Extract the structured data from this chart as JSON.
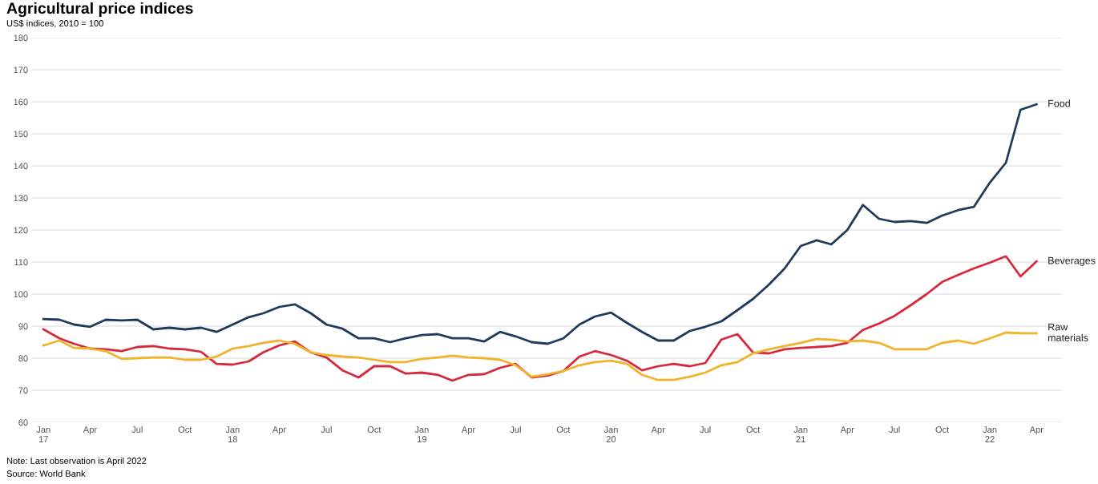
{
  "chart_data": {
    "type": "line",
    "title": "Agricultural price indices",
    "subtitle": "US$ indices, 2010 = 100",
    "x": [
      "2017-01",
      "2017-02",
      "2017-03",
      "2017-04",
      "2017-05",
      "2017-06",
      "2017-07",
      "2017-08",
      "2017-09",
      "2017-10",
      "2017-11",
      "2017-12",
      "2018-01",
      "2018-02",
      "2018-03",
      "2018-04",
      "2018-05",
      "2018-06",
      "2018-07",
      "2018-08",
      "2018-09",
      "2018-10",
      "2018-11",
      "2018-12",
      "2019-01",
      "2019-02",
      "2019-03",
      "2019-04",
      "2019-05",
      "2019-06",
      "2019-07",
      "2019-08",
      "2019-09",
      "2019-10",
      "2019-11",
      "2019-12",
      "2020-01",
      "2020-02",
      "2020-03",
      "2020-04",
      "2020-05",
      "2020-06",
      "2020-07",
      "2020-08",
      "2020-09",
      "2020-10",
      "2020-11",
      "2020-12",
      "2021-01",
      "2021-02",
      "2021-03",
      "2021-04",
      "2021-05",
      "2021-06",
      "2021-07",
      "2021-08",
      "2021-09",
      "2021-10",
      "2021-11",
      "2021-12",
      "2022-01",
      "2022-02",
      "2022-03",
      "2022-04"
    ],
    "series": [
      {
        "name": "Food",
        "color": "#1f3a5a",
        "values": [
          92.2,
          92,
          90.5,
          89.8,
          92,
          91.8,
          92,
          89,
          89.5,
          89,
          89.5,
          88.2,
          90.5,
          92.8,
          94,
          96,
          96.8,
          94,
          90.5,
          89.2,
          86.2,
          86.2,
          85,
          86.2,
          87.2,
          87.5,
          86.2,
          86.2,
          85.2,
          88.2,
          86.8,
          85,
          84.5,
          86.2,
          90.5,
          93,
          94.2,
          91,
          88.2,
          85.5,
          85.5,
          88.5,
          89.8,
          91.5,
          95,
          98.5,
          103,
          108,
          115,
          116.8,
          115.5,
          120,
          127.8,
          123.5,
          122.5,
          122.8,
          122.2,
          124.5,
          126.2,
          127.2,
          134.8,
          141,
          157.5,
          159.2
        ]
      },
      {
        "name": "Beverages",
        "color": "#d62a3c",
        "values": [
          89,
          86.2,
          84.5,
          83,
          82.8,
          82.2,
          83.5,
          83.8,
          83,
          82.8,
          82,
          78.2,
          78,
          79,
          81.8,
          84,
          85.2,
          81.8,
          80.2,
          76.2,
          74,
          77.5,
          77.5,
          75.2,
          75.5,
          74.8,
          73,
          74.8,
          75,
          77,
          78.2,
          74,
          74.6,
          76,
          80.5,
          82.2,
          81,
          79.2,
          76.2,
          77.5,
          78.2,
          77.5,
          78.5,
          85.8,
          87.5,
          81.8,
          81.5,
          82.8,
          83.2,
          83.5,
          83.8,
          84.8,
          88.8,
          90.8,
          93.2,
          96.5,
          100,
          103.8,
          106,
          108,
          109.8,
          111.8,
          105.5,
          110.2
        ]
      },
      {
        "name": "Raw\nmaterials",
        "color": "#f0b42a",
        "values": [
          84,
          85.5,
          83.2,
          83,
          82.2,
          79.8,
          80,
          80.2,
          80.2,
          79.5,
          79.5,
          80.5,
          83,
          83.8,
          84.8,
          85.5,
          84.5,
          81.8,
          81,
          80.5,
          80.2,
          79.5,
          78.8,
          78.8,
          79.8,
          80.2,
          80.8,
          80.2,
          80,
          79.5,
          77.8,
          74.2,
          75,
          76,
          77.8,
          78.8,
          79.2,
          78.2,
          74.8,
          73.2,
          73.2,
          74.2,
          75.5,
          77.8,
          78.8,
          81.5,
          82.8,
          83.8,
          84.8,
          86,
          85.8,
          85.2,
          85.5,
          84.8,
          82.8,
          82.8,
          82.8,
          84.8,
          85.5,
          84.5,
          86.2,
          88,
          87.8,
          87.8
        ]
      }
    ],
    "xlim": [
      "2016-12-10",
      "2022-05-20"
    ],
    "xticks": [
      {
        "value": "2017-01",
        "label": "Jan\n17"
      },
      {
        "value": "2017-04",
        "label": "Apr"
      },
      {
        "value": "2017-07",
        "label": "Jul"
      },
      {
        "value": "2017-10",
        "label": "Oct"
      },
      {
        "value": "2018-01",
        "label": "Jan\n18"
      },
      {
        "value": "2018-04",
        "label": "Apr"
      },
      {
        "value": "2018-07",
        "label": "Jul"
      },
      {
        "value": "2018-10",
        "label": "Oct"
      },
      {
        "value": "2019-01",
        "label": "Jan\n19"
      },
      {
        "value": "2019-04",
        "label": "Apr"
      },
      {
        "value": "2019-07",
        "label": "Jul"
      },
      {
        "value": "2019-10",
        "label": "Oct"
      },
      {
        "value": "2020-01",
        "label": "Jan\n20"
      },
      {
        "value": "2020-04",
        "label": "Apr"
      },
      {
        "value": "2020-07",
        "label": "Jul"
      },
      {
        "value": "2020-10",
        "label": "Oct"
      },
      {
        "value": "2021-01",
        "label": "Jan\n21"
      },
      {
        "value": "2021-04",
        "label": "Apr"
      },
      {
        "value": "2021-07",
        "label": "Jul"
      },
      {
        "value": "2021-10",
        "label": "Oct"
      },
      {
        "value": "2022-01",
        "label": "Jan\n22"
      },
      {
        "value": "2022-04",
        "label": "Apr"
      }
    ],
    "ylim": [
      60,
      180
    ],
    "yticks": [
      60,
      70,
      80,
      90,
      100,
      110,
      120,
      130,
      140,
      150,
      160,
      170,
      180
    ],
    "grid": "y",
    "legend": false,
    "marker": "none",
    "line_style": "solid",
    "annotations": [
      "Note: Last observation is April 2022",
      "Source: World Bank"
    ]
  }
}
